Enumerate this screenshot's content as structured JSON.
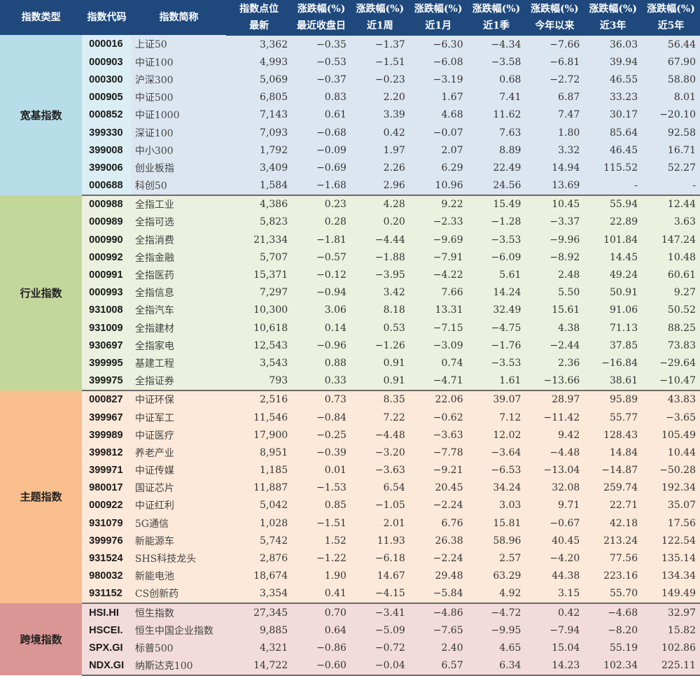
{
  "header": {
    "col_type": "指数类型",
    "col_code": "指数代码",
    "col_name": "指数简称",
    "col_points_top": "指数点位",
    "col_points_bottom": "最新",
    "change_label": "涨跌幅(%)",
    "periods": [
      "最近收盘日",
      "近1周",
      "近1月",
      "近1季",
      "今年以来",
      "近3年",
      "近5年"
    ]
  },
  "groups": [
    {
      "category": "宽基指数",
      "color": "#b7dde8",
      "rows": [
        {
          "code": "000016",
          "name": "上证50",
          "points": "3,362",
          "changes": [
            "-0.35",
            "-1.37",
            "-6.30",
            "-4.34",
            "-7.66",
            "36.03",
            "56.44"
          ]
        },
        {
          "code": "000903",
          "name": "中证100",
          "points": "4,993",
          "changes": [
            "-0.53",
            "-1.51",
            "-6.08",
            "-3.58",
            "-6.81",
            "39.94",
            "67.90"
          ]
        },
        {
          "code": "000300",
          "name": "沪深300",
          "points": "5,069",
          "changes": [
            "-0.37",
            "-0.23",
            "-3.19",
            "0.68",
            "-2.72",
            "46.55",
            "58.80"
          ]
        },
        {
          "code": "000905",
          "name": "中证500",
          "points": "6,805",
          "changes": [
            "0.83",
            "2.20",
            "1.67",
            "7.41",
            "6.87",
            "33.23",
            "8.01"
          ]
        },
        {
          "code": "000852",
          "name": "中证1000",
          "points": "7,143",
          "changes": [
            "0.61",
            "3.39",
            "4.68",
            "11.62",
            "7.47",
            "30.17",
            "-20.10"
          ]
        },
        {
          "code": "399330",
          "name": "深证100",
          "points": "7,093",
          "changes": [
            "-0.68",
            "0.42",
            "-0.07",
            "7.63",
            "1.80",
            "85.64",
            "92.58"
          ]
        },
        {
          "code": "399008",
          "name": "中小300",
          "points": "1,792",
          "changes": [
            "-0.09",
            "1.97",
            "2.07",
            "8.89",
            "3.32",
            "46.45",
            "16.71"
          ]
        },
        {
          "code": "399006",
          "name": "创业板指",
          "points": "3,409",
          "changes": [
            "-0.69",
            "2.26",
            "6.29",
            "22.49",
            "14.94",
            "115.52",
            "52.27"
          ]
        },
        {
          "code": "000688",
          "name": "科创50",
          "points": "1,584",
          "changes": [
            "-1.68",
            "2.96",
            "10.96",
            "24.56",
            "13.69",
            "-",
            "-"
          ]
        }
      ]
    },
    {
      "category": "行业指数",
      "color": "#c4d79b",
      "rows": [
        {
          "code": "000988",
          "name": "全指工业",
          "points": "4,386",
          "changes": [
            "0.23",
            "4.28",
            "9.22",
            "15.49",
            "10.45",
            "55.94",
            "12.44"
          ]
        },
        {
          "code": "000989",
          "name": "全指可选",
          "points": "5,823",
          "changes": [
            "0.28",
            "0.20",
            "-2.33",
            "-1.28",
            "-3.37",
            "22.89",
            "3.63"
          ]
        },
        {
          "code": "000990",
          "name": "全指消费",
          "points": "21,334",
          "changes": [
            "-1.81",
            "-4.44",
            "-9.69",
            "-3.53",
            "-9.96",
            "101.84",
            "147.24"
          ]
        },
        {
          "code": "000992",
          "name": "全指金融",
          "points": "5,707",
          "changes": [
            "-0.57",
            "-1.88",
            "-7.91",
            "-6.09",
            "-8.92",
            "14.45",
            "10.48"
          ]
        },
        {
          "code": "000991",
          "name": "全指医药",
          "points": "15,371",
          "changes": [
            "-0.12",
            "-3.95",
            "-4.22",
            "5.61",
            "2.48",
            "49.24",
            "60.61"
          ]
        },
        {
          "code": "000993",
          "name": "全指信息",
          "points": "7,297",
          "changes": [
            "-0.94",
            "3.42",
            "7.66",
            "14.24",
            "5.50",
            "50.91",
            "9.27"
          ]
        },
        {
          "code": "931008",
          "name": "全指汽车",
          "points": "10,300",
          "changes": [
            "3.06",
            "8.18",
            "13.31",
            "32.49",
            "15.61",
            "91.06",
            "50.52"
          ]
        },
        {
          "code": "931009",
          "name": "全指建材",
          "points": "10,618",
          "changes": [
            "0.14",
            "0.53",
            "-7.15",
            "-4.75",
            "4.38",
            "71.13",
            "88.25"
          ]
        },
        {
          "code": "930697",
          "name": "全指家电",
          "points": "12,543",
          "changes": [
            "-0.96",
            "-1.26",
            "-3.09",
            "-1.76",
            "-2.44",
            "37.85",
            "73.83"
          ]
        },
        {
          "code": "399995",
          "name": "基建工程",
          "points": "3,543",
          "changes": [
            "0.88",
            "0.91",
            "0.74",
            "-3.53",
            "2.36",
            "-16.84",
            "-29.64"
          ]
        },
        {
          "code": "399975",
          "name": "全指证券",
          "points": "793",
          "changes": [
            "0.33",
            "0.91",
            "-4.71",
            "1.61",
            "-13.66",
            "38.61",
            "-10.47"
          ]
        }
      ]
    },
    {
      "category": "主题指数",
      "color": "#fabf8f",
      "rows": [
        {
          "code": "000827",
          "name": "中证环保",
          "points": "2,516",
          "changes": [
            "0.73",
            "8.35",
            "22.06",
            "39.07",
            "28.97",
            "95.89",
            "43.83"
          ]
        },
        {
          "code": "399967",
          "name": "中证军工",
          "points": "11,546",
          "changes": [
            "-0.84",
            "7.22",
            "-0.62",
            "7.12",
            "-11.42",
            "55.77",
            "-3.65"
          ]
        },
        {
          "code": "399989",
          "name": "中证医疗",
          "points": "17,900",
          "changes": [
            "-0.25",
            "-4.48",
            "-3.63",
            "12.02",
            "9.42",
            "128.43",
            "105.49"
          ]
        },
        {
          "code": "399812",
          "name": "养老产业",
          "points": "8,951",
          "changes": [
            "-0.39",
            "-3.20",
            "-7.78",
            "-3.64",
            "-4.48",
            "14.84",
            "10.44"
          ]
        },
        {
          "code": "399971",
          "name": "中证传媒",
          "points": "1,185",
          "changes": [
            "0.01",
            "-3.63",
            "-9.21",
            "-6.53",
            "-13.04",
            "-14.87",
            "-50.28"
          ]
        },
        {
          "code": "980017",
          "name": "国证芯片",
          "points": "11,887",
          "changes": [
            "-1.53",
            "6.54",
            "20.45",
            "34.24",
            "32.08",
            "259.74",
            "192.34"
          ]
        },
        {
          "code": "000922",
          "name": "中证红利",
          "points": "5,042",
          "changes": [
            "0.85",
            "-1.05",
            "-2.24",
            "3.03",
            "9.71",
            "22.71",
            "35.07"
          ]
        },
        {
          "code": "931079",
          "name": "5G通信",
          "points": "1,028",
          "changes": [
            "-1.51",
            "2.01",
            "6.76",
            "15.81",
            "-0.67",
            "42.18",
            "17.56"
          ]
        },
        {
          "code": "399976",
          "name": "新能源车",
          "points": "5,742",
          "changes": [
            "1.52",
            "11.93",
            "26.38",
            "58.96",
            "40.45",
            "213.24",
            "122.54"
          ]
        },
        {
          "code": "931524",
          "name": "SHS科技龙头",
          "points": "2,876",
          "changes": [
            "-1.22",
            "-6.18",
            "-2.24",
            "2.57",
            "-4.20",
            "77.56",
            "135.14"
          ]
        },
        {
          "code": "980032",
          "name": "新能电池",
          "points": "18,674",
          "changes": [
            "1.90",
            "14.67",
            "29.48",
            "63.29",
            "44.38",
            "223.16",
            "134.34"
          ]
        },
        {
          "code": "931152",
          "name": "CS创新药",
          "points": "3,354",
          "changes": [
            "0.41",
            "-4.15",
            "-5.84",
            "4.92",
            "3.15",
            "55.70",
            "149.49"
          ]
        }
      ]
    },
    {
      "category": "跨境指数",
      "color": "#da9694",
      "rows": [
        {
          "code": "HSI.HI",
          "name": "恒生指数",
          "points": "27,345",
          "changes": [
            "0.70",
            "-3.41",
            "-4.86",
            "-4.72",
            "0.42",
            "-4.68",
            "32.97"
          ]
        },
        {
          "code": "HSCEI.",
          "name": "恒生中国企业指数",
          "points": "9,885",
          "changes": [
            "0.64",
            "-5.09",
            "-7.65",
            "-9.95",
            "-7.94",
            "-8.20",
            "15.82"
          ]
        },
        {
          "code": "SPX.GI",
          "name": "标普500",
          "points": "4,321",
          "changes": [
            "-0.86",
            "-0.72",
            "2.40",
            "4.65",
            "15.04",
            "55.19",
            "102.86"
          ]
        },
        {
          "code": "NDX.GI",
          "name": "纳斯达克100",
          "points": "14,722",
          "changes": [
            "-0.60",
            "-0.04",
            "6.57",
            "6.34",
            "14.23",
            "102.34",
            "225.11"
          ]
        }
      ]
    }
  ],
  "colors": {
    "header_bg": "#1f497d",
    "header_text": "#ffffff"
  }
}
